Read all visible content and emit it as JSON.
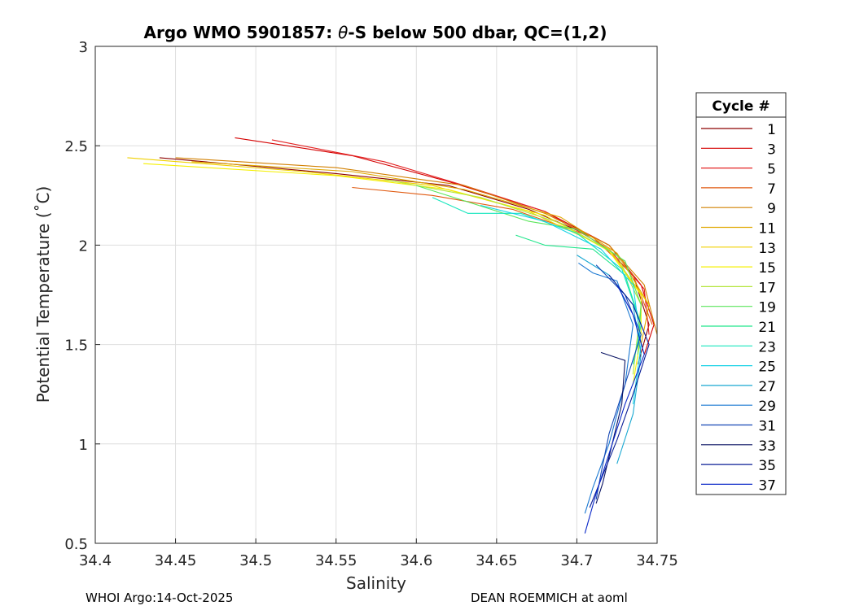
{
  "chart_data": {
    "type": "line",
    "title_parts": [
      "Argo WMO 5901857: ",
      "θ",
      "-S below 500 dbar,  QC=(1,2)"
    ],
    "xlabel": "Salinity",
    "ylabel": "Potential Temperature (˚C)",
    "xlim": [
      34.4,
      34.75
    ],
    "ylim": [
      0.5,
      3
    ],
    "xticks": [
      "34.4",
      "34.45",
      "34.5",
      "34.55",
      "34.6",
      "34.65",
      "34.7",
      "34.75"
    ],
    "yticks": [
      "0.5",
      "1",
      "1.5",
      "2",
      "2.5",
      "3"
    ],
    "grid": true,
    "legend": {
      "title": "Cycle #",
      "placement": "outside-right",
      "entries": [
        {
          "label": "1",
          "color": "#8c0000"
        },
        {
          "label": "3",
          "color": "#d40000"
        },
        {
          "label": "5",
          "color": "#e32222"
        },
        {
          "label": "7",
          "color": "#e05a10"
        },
        {
          "label": "9",
          "color": "#d28000"
        },
        {
          "label": "11",
          "color": "#e0a800"
        },
        {
          "label": "13",
          "color": "#f0d000"
        },
        {
          "label": "15",
          "color": "#f5f000"
        },
        {
          "label": "17",
          "color": "#b4e63c"
        },
        {
          "label": "19",
          "color": "#5ae65a"
        },
        {
          "label": "21",
          "color": "#22e68c"
        },
        {
          "label": "23",
          "color": "#18e6be"
        },
        {
          "label": "25",
          "color": "#18d2e6"
        },
        {
          "label": "27",
          "color": "#1aa8d2"
        },
        {
          "label": "29",
          "color": "#1a78d2"
        },
        {
          "label": "31",
          "color": "#1446b4"
        },
        {
          "label": "33",
          "color": "#0a1464"
        },
        {
          "label": "35",
          "color": "#0a1e96"
        },
        {
          "label": "37",
          "color": "#0a28c8"
        }
      ]
    },
    "series": [
      {
        "color": "#8c0000",
        "points": [
          [
            34.44,
            2.44
          ],
          [
            34.55,
            2.36
          ],
          [
            34.62,
            2.3
          ],
          [
            34.67,
            2.18
          ],
          [
            34.71,
            2.04
          ],
          [
            34.735,
            1.85
          ],
          [
            34.745,
            1.6
          ],
          [
            34.738,
            1.4
          ]
        ]
      },
      {
        "color": "#d40000",
        "points": [
          [
            34.487,
            2.54
          ],
          [
            34.56,
            2.45
          ],
          [
            34.62,
            2.32
          ],
          [
            34.68,
            2.17
          ],
          [
            34.72,
            2.0
          ],
          [
            34.74,
            1.8
          ],
          [
            34.748,
            1.6
          ],
          [
            34.742,
            1.45
          ]
        ]
      },
      {
        "color": "#e32222",
        "points": [
          [
            34.51,
            2.53
          ],
          [
            34.58,
            2.42
          ],
          [
            34.63,
            2.3
          ],
          [
            34.68,
            2.17
          ],
          [
            34.72,
            1.98
          ],
          [
            34.742,
            1.78
          ],
          [
            34.745,
            1.55
          ]
        ]
      },
      {
        "color": "#e05a10",
        "points": [
          [
            34.56,
            2.29
          ],
          [
            34.61,
            2.25
          ],
          [
            34.66,
            2.18
          ],
          [
            34.71,
            2.04
          ],
          [
            34.735,
            1.85
          ],
          [
            34.747,
            1.6
          ]
        ]
      },
      {
        "color": "#d28000",
        "points": [
          [
            34.45,
            2.44
          ],
          [
            34.55,
            2.39
          ],
          [
            34.63,
            2.3
          ],
          [
            34.68,
            2.16
          ],
          [
            34.72,
            2.0
          ],
          [
            34.742,
            1.8
          ],
          [
            34.75,
            1.55
          ]
        ]
      },
      {
        "color": "#e0a800",
        "points": [
          [
            34.46,
            2.42
          ],
          [
            34.56,
            2.37
          ],
          [
            34.63,
            2.28
          ],
          [
            34.69,
            2.14
          ],
          [
            34.725,
            1.96
          ],
          [
            34.745,
            1.7
          ],
          [
            34.74,
            1.5
          ]
        ]
      },
      {
        "color": "#f0d000",
        "points": [
          [
            34.42,
            2.44
          ],
          [
            34.53,
            2.37
          ],
          [
            34.61,
            2.3
          ],
          [
            34.67,
            2.17
          ],
          [
            34.72,
            1.98
          ],
          [
            34.745,
            1.7
          ]
        ]
      },
      {
        "color": "#f5f000",
        "points": [
          [
            34.43,
            2.41
          ],
          [
            34.55,
            2.35
          ],
          [
            34.62,
            2.28
          ],
          [
            34.68,
            2.15
          ],
          [
            34.72,
            1.97
          ],
          [
            34.74,
            1.75
          ],
          [
            34.74,
            1.55
          ],
          [
            34.735,
            1.3
          ]
        ]
      },
      {
        "color": "#b4e63c",
        "points": [
          [
            34.58,
            2.33
          ],
          [
            34.64,
            2.24
          ],
          [
            34.69,
            2.11
          ],
          [
            34.725,
            1.95
          ],
          [
            34.74,
            1.7
          ],
          [
            34.735,
            1.35
          ]
        ]
      },
      {
        "color": "#5ae65a",
        "points": [
          [
            34.6,
            2.3
          ],
          [
            34.67,
            2.12
          ],
          [
            34.7,
            2.08
          ],
          [
            34.73,
            1.92
          ],
          [
            34.74,
            1.7
          ],
          [
            34.738,
            1.45
          ]
        ]
      },
      {
        "color": "#22e68c",
        "points": [
          [
            34.662,
            2.05
          ],
          [
            34.68,
            2.0
          ],
          [
            34.71,
            1.98
          ],
          [
            34.73,
            1.85
          ],
          [
            34.74,
            1.6
          ]
        ]
      },
      {
        "color": "#18e6be",
        "points": [
          [
            34.61,
            2.24
          ],
          [
            34.632,
            2.16
          ],
          [
            34.665,
            2.16
          ],
          [
            34.7,
            2.06
          ],
          [
            34.728,
            1.88
          ],
          [
            34.74,
            1.6
          ],
          [
            34.735,
            1.4
          ]
        ]
      },
      {
        "color": "#18d2e6",
        "points": [
          [
            34.64,
            2.2
          ],
          [
            34.68,
            2.12
          ],
          [
            34.715,
            1.98
          ],
          [
            34.735,
            1.8
          ],
          [
            34.74,
            1.5
          ],
          [
            34.735,
            1.2
          ]
        ]
      },
      {
        "color": "#1aa8d2",
        "points": [
          [
            34.7,
            1.95
          ],
          [
            34.72,
            1.85
          ],
          [
            34.735,
            1.7
          ],
          [
            34.74,
            1.45
          ],
          [
            34.735,
            1.15
          ],
          [
            34.725,
            0.9
          ]
        ]
      },
      {
        "color": "#1a78d2",
        "points": [
          [
            34.701,
            1.91
          ],
          [
            34.71,
            1.86
          ],
          [
            34.725,
            1.82
          ],
          [
            34.735,
            1.6
          ],
          [
            34.73,
            1.3
          ],
          [
            34.72,
            1.0
          ],
          [
            34.71,
            0.78
          ],
          [
            34.705,
            0.65
          ]
        ]
      },
      {
        "color": "#1446b4",
        "points": [
          [
            34.712,
            1.9
          ],
          [
            34.73,
            1.75
          ],
          [
            34.74,
            1.55
          ],
          [
            34.73,
            1.3
          ],
          [
            34.72,
            1.05
          ],
          [
            34.715,
            0.85
          ],
          [
            34.712,
            0.72
          ]
        ]
      },
      {
        "color": "#0a1464",
        "points": [
          [
            34.715,
            1.46
          ],
          [
            34.73,
            1.42
          ],
          [
            34.728,
            1.2
          ],
          [
            34.722,
            1.0
          ],
          [
            34.716,
            0.8
          ],
          [
            34.712,
            0.7
          ]
        ]
      },
      {
        "color": "#0a1e96",
        "points": [
          [
            34.72,
            1.85
          ],
          [
            34.735,
            1.7
          ],
          [
            34.745,
            1.5
          ],
          [
            34.735,
            1.25
          ],
          [
            34.725,
            1.02
          ],
          [
            34.715,
            0.82
          ],
          [
            34.708,
            0.68
          ]
        ]
      },
      {
        "color": "#0a28c8",
        "points": [
          [
            34.725,
            1.8
          ],
          [
            34.735,
            1.65
          ],
          [
            34.742,
            1.45
          ],
          [
            34.73,
            1.2
          ],
          [
            34.72,
            0.95
          ],
          [
            34.712,
            0.75
          ],
          [
            34.705,
            0.55
          ]
        ]
      }
    ]
  },
  "footer": {
    "left": "WHOI Argo:14-Oct-2025",
    "right": "DEAN ROEMMICH at aoml"
  }
}
